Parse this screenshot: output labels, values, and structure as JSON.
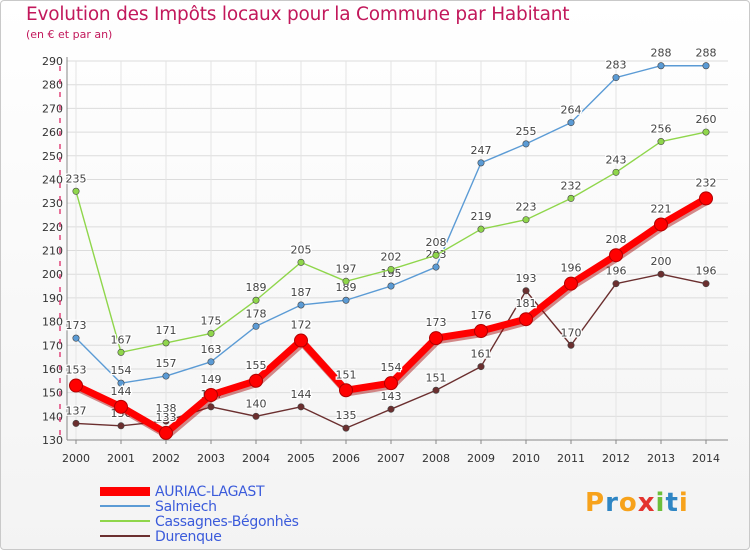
{
  "title": "Evolution des Impôts locaux pour la Commune par Habitant",
  "subtitle": "(en € et par an)",
  "brand": {
    "letters": [
      "P",
      "r",
      "o",
      "x",
      "i",
      "t",
      "i"
    ],
    "colors": [
      "#f7a21b",
      "#2f86c4",
      "#f7a21b",
      "#e3342f",
      "#6cbf3a",
      "#2f86c4",
      "#f7a21b"
    ]
  },
  "chart_data": {
    "type": "line",
    "x": [
      "2000",
      "2001",
      "2002",
      "2003",
      "2004",
      "2005",
      "2006",
      "2007",
      "2008",
      "2009",
      "2010",
      "2011",
      "2012",
      "2013",
      "2014"
    ],
    "ylim": [
      130,
      290
    ],
    "yticks": [
      130,
      140,
      150,
      160,
      170,
      180,
      190,
      200,
      210,
      220,
      230,
      240,
      250,
      260,
      270,
      280,
      290
    ],
    "grid": true,
    "legend": "bottom-left",
    "series": [
      {
        "name": "Salmiech",
        "color": "#5b9bd5",
        "values": [
          173,
          154,
          157,
          163,
          178,
          187,
          189,
          195,
          203,
          247,
          255,
          264,
          283,
          288,
          288
        ]
      },
      {
        "name": "Cassagnes-Bégonhès",
        "color": "#8fd64b",
        "values": [
          235,
          167,
          171,
          175,
          189,
          205,
          197,
          202,
          208,
          219,
          223,
          232,
          243,
          256,
          260
        ]
      },
      {
        "name": "Durenque",
        "color": "#6b2f2f",
        "values": [
          137,
          136,
          138,
          144,
          140,
          144,
          135,
          143,
          151,
          161,
          193,
          170,
          196,
          200,
          196
        ]
      },
      {
        "name": "AURIAC-LAGAST",
        "color": "#ff0000",
        "values": [
          153,
          144,
          133,
          149,
          155,
          172,
          151,
          154,
          173,
          176,
          181,
          196,
          208,
          221,
          232
        ]
      }
    ]
  },
  "legend_items": [
    {
      "name": "AURIAC-LAGAST",
      "color": "#ff0000"
    },
    {
      "name": "Salmiech",
      "color": "#5b9bd5"
    },
    {
      "name": "Cassagnes-Bégonhès",
      "color": "#8fd64b"
    },
    {
      "name": "Durenque",
      "color": "#6b2f2f"
    }
  ]
}
